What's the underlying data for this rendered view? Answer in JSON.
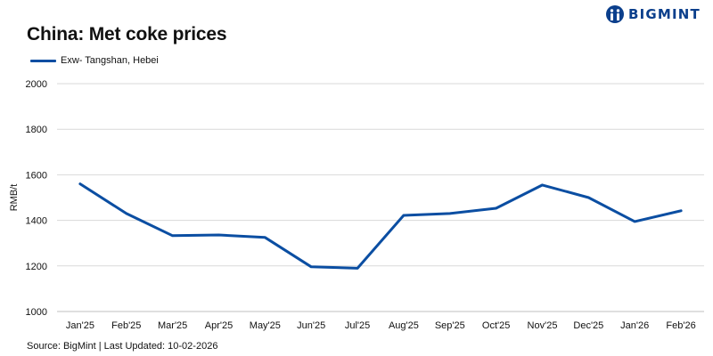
{
  "brand": {
    "name": "BIGMINT",
    "logo_icon": "bigmint-logo-icon",
    "color": "#0b3f8c"
  },
  "source_text": "Source: BigMint | Last Updated: 10-02-2026",
  "chart_data": {
    "type": "line",
    "title": "China: Met coke prices",
    "xlabel": "",
    "ylabel": "RMB/t",
    "categories": [
      "Jan'25",
      "Feb'25",
      "Mar'25",
      "Apr'25",
      "May'25",
      "Jun'25",
      "Jul'25",
      "Aug'25",
      "Sep'25",
      "Oct'25",
      "Nov'25",
      "Dec'25",
      "Jan'26",
      "Feb'26"
    ],
    "series": [
      {
        "name": "Exw- Tangshan, Hebei",
        "color": "#0b4ea2",
        "values": [
          1560,
          1430,
          1333,
          1336,
          1325,
          1196,
          1190,
          1422,
          1430,
          1453,
          1555,
          1500,
          1395,
          1442
        ]
      }
    ],
    "ylim": [
      1000,
      2000
    ],
    "yticks": [
      1000,
      1200,
      1400,
      1600,
      1800,
      2000
    ],
    "grid": true,
    "legend_position": "top-left"
  }
}
